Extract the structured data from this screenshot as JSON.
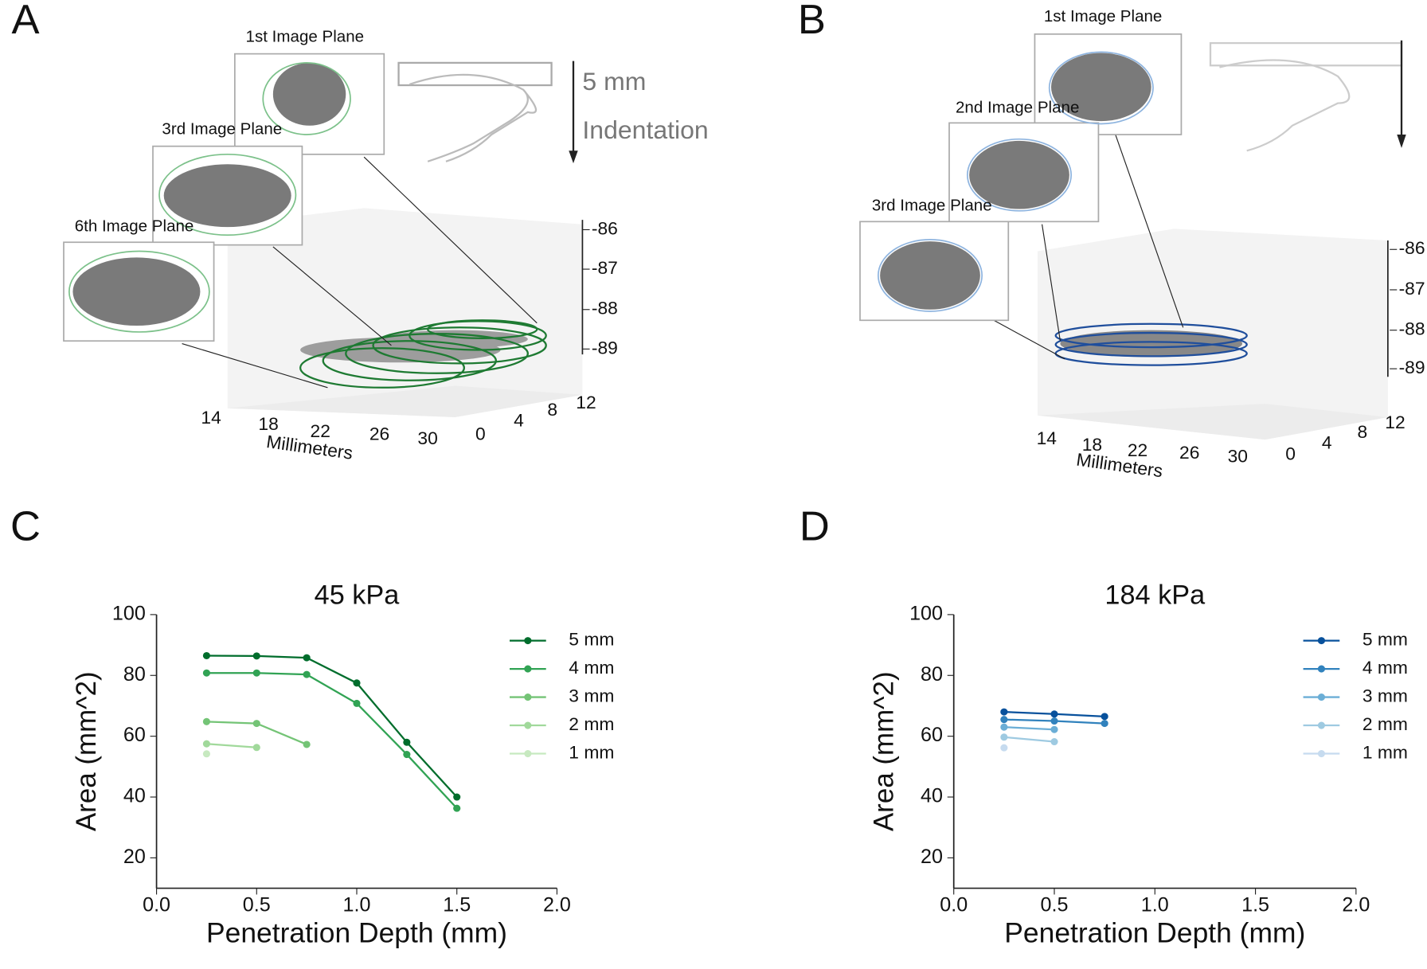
{
  "figures": [
    {
      "letter": "A",
      "planes": [
        "1st Image Plane",
        "3rd Image Plane",
        "6th Image Plane"
      ],
      "arrow_labels": [
        "5 mm",
        "Indentation"
      ],
      "z_ticks": [
        -86,
        -87,
        -88,
        -89
      ],
      "x_ticks": [
        14,
        18,
        22,
        26,
        30
      ],
      "y_ticks": [
        0,
        4,
        8,
        12
      ],
      "x_label": "Millimeters"
    },
    {
      "letter": "B",
      "planes": [
        "1st Image Plane",
        "2nd Image Plane",
        "3rd Image Plane"
      ],
      "z_ticks": [
        -86,
        -87,
        -88,
        -89
      ],
      "x_ticks": [
        14,
        18,
        22,
        26,
        30
      ],
      "y_ticks": [
        0,
        4,
        8,
        12
      ],
      "x_label": "Millimeters"
    }
  ],
  "chart_data": [
    {
      "type": "line",
      "panel_label": "C",
      "title": "45 kPa",
      "x_label": "Penetration Depth (mm)",
      "y_label": "Area (mm^2)",
      "x": [
        0.25,
        0.5,
        0.75,
        1.0,
        1.25,
        1.5
      ],
      "series": [
        {
          "name": "5 mm",
          "color": "#006d2c",
          "values": [
            86.5,
            86.4,
            85.8,
            77.5,
            58,
            40
          ]
        },
        {
          "name": "4 mm",
          "color": "#31a354",
          "values": [
            80.8,
            80.8,
            80.3,
            70.8,
            54,
            36.3
          ]
        },
        {
          "name": "3 mm",
          "color": "#74c476",
          "values": [
            64.8,
            64.2,
            57.3,
            null,
            null,
            null
          ]
        },
        {
          "name": "2 mm",
          "color": "#a1d99b",
          "values": [
            57.5,
            56.3,
            null,
            null,
            null,
            null
          ]
        },
        {
          "name": "1 mm",
          "color": "#c7e9c0",
          "values": [
            54.2,
            null,
            null,
            null,
            null,
            null
          ]
        }
      ],
      "xlim": [
        0,
        2
      ],
      "xticks": [
        {
          "value": 0,
          "label": "0.0"
        },
        {
          "value": 0.5,
          "label": "0.5"
        },
        {
          "value": 1,
          "label": "1.0"
        },
        {
          "value": 1.5,
          "label": "1.5"
        },
        {
          "value": 2,
          "label": "2.0"
        }
      ],
      "ylim": [
        10,
        100
      ],
      "yticks": [
        20,
        40,
        60,
        80,
        100
      ],
      "legend": "right"
    },
    {
      "type": "line",
      "panel_label": "D",
      "title": "184 kPa",
      "x_label": "Penetration Depth (mm)",
      "y_label": "Area (mm^2)",
      "x": [
        0.25,
        0.5,
        0.75
      ],
      "series": [
        {
          "name": "5 mm",
          "color": "#08519c",
          "values": [
            68.0,
            67.3,
            66.5
          ]
        },
        {
          "name": "4 mm",
          "color": "#3182bd",
          "values": [
            65.5,
            65.0,
            64.2
          ]
        },
        {
          "name": "3 mm",
          "color": "#6baed6",
          "values": [
            63.0,
            62.2,
            null
          ]
        },
        {
          "name": "2 mm",
          "color": "#9ecae1",
          "values": [
            59.7,
            58.2,
            null
          ]
        },
        {
          "name": "1 mm",
          "color": "#c6dbef",
          "values": [
            56.2,
            null,
            null
          ]
        }
      ],
      "xlim": [
        0,
        2
      ],
      "xticks": [
        {
          "value": 0,
          "label": "0.0"
        },
        {
          "value": 0.5,
          "label": "0.5"
        },
        {
          "value": 1,
          "label": "1.0"
        },
        {
          "value": 1.5,
          "label": "1.5"
        },
        {
          "value": 2,
          "label": "2.0"
        }
      ],
      "ylim": [
        10,
        100
      ],
      "yticks": [
        20,
        40,
        60,
        80,
        100
      ],
      "legend": "right"
    }
  ]
}
